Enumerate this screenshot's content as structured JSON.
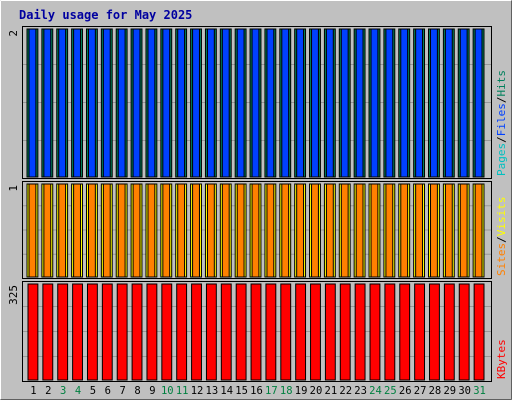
{
  "title": "Daily usage for May 2025",
  "colors": {
    "background": "#c0c0c0",
    "plot_background": "#c0c0c0",
    "gridline": "#999999",
    "title": "#0000a0",
    "hits": "#00805c",
    "files": "#0040ff",
    "pages": "#00c0c0",
    "visits": "#ffff00",
    "sites": "#ff8000",
    "kbytes": "#ff0000",
    "weekday_label": "#000000",
    "weekend_label": "#008040"
  },
  "chart_data": {
    "type": "bar",
    "categories": [
      "1",
      "2",
      "3",
      "4",
      "5",
      "6",
      "7",
      "8",
      "9",
      "10",
      "11",
      "12",
      "13",
      "14",
      "15",
      "16",
      "17",
      "18",
      "19",
      "20",
      "21",
      "22",
      "23",
      "24",
      "25",
      "26",
      "27",
      "28",
      "29",
      "30",
      "31"
    ],
    "weekend_days": [
      "3",
      "4",
      "10",
      "11",
      "17",
      "18",
      "24",
      "25",
      "31"
    ],
    "panels": [
      {
        "key": "hits_files_pages",
        "ymax_label": "2",
        "ylim": [
          0,
          2
        ],
        "legend": [
          {
            "label": "Pages",
            "color_key": "pages"
          },
          {
            "sep": "/"
          },
          {
            "label": "Files",
            "color_key": "files"
          },
          {
            "sep": "/"
          },
          {
            "label": "Hits",
            "color_key": "hits"
          }
        ],
        "series": [
          {
            "name": "Hits",
            "color_key": "hits",
            "values": [
              2,
              2,
              2,
              2,
              2,
              2,
              2,
              2,
              2,
              2,
              2,
              2,
              2,
              2,
              2,
              2,
              2,
              2,
              2,
              2,
              2,
              2,
              2,
              2,
              2,
              2,
              2,
              2,
              2,
              2,
              2
            ]
          },
          {
            "name": "Files",
            "color_key": "files",
            "values": [
              2,
              2,
              2,
              2,
              2,
              2,
              2,
              2,
              2,
              2,
              2,
              2,
              2,
              2,
              2,
              2,
              2,
              2,
              2,
              2,
              2,
              2,
              2,
              2,
              2,
              2,
              2,
              2,
              2,
              2,
              2
            ]
          }
        ]
      },
      {
        "key": "visits_sites",
        "ymax_label": "1",
        "ylim": [
          0,
          1
        ],
        "legend": [
          {
            "label": "Sites",
            "color_key": "sites"
          },
          {
            "sep": "/"
          },
          {
            "label": "Visits",
            "color_key": "visits"
          }
        ],
        "series": [
          {
            "name": "Visits",
            "color_key": "visits",
            "values": [
              1,
              1,
              1,
              1,
              1,
              1,
              1,
              1,
              1,
              1,
              1,
              1,
              1,
              1,
              1,
              1,
              1,
              1,
              1,
              1,
              1,
              1,
              1,
              1,
              1,
              1,
              1,
              1,
              1,
              1,
              1
            ]
          },
          {
            "name": "Sites",
            "color_key": "sites",
            "values": [
              1,
              1,
              1,
              1,
              1,
              1,
              1,
              1,
              1,
              1,
              1,
              1,
              1,
              1,
              1,
              1,
              1,
              1,
              1,
              1,
              1,
              1,
              1,
              1,
              1,
              1,
              1,
              1,
              1,
              1,
              1
            ]
          }
        ]
      },
      {
        "key": "kbytes",
        "ymax_label": "325",
        "ylim": [
          0,
          325
        ],
        "legend": [
          {
            "label": "KBytes",
            "color_key": "kbytes"
          }
        ],
        "series": [
          {
            "name": "KBytes",
            "color_key": "kbytes",
            "values": [
              325,
              325,
              325,
              325,
              325,
              325,
              325,
              325,
              325,
              325,
              325,
              325,
              325,
              325,
              325,
              325,
              325,
              325,
              325,
              325,
              325,
              325,
              325,
              325,
              325,
              325,
              325,
              325,
              325,
              325,
              325
            ]
          }
        ]
      }
    ]
  }
}
